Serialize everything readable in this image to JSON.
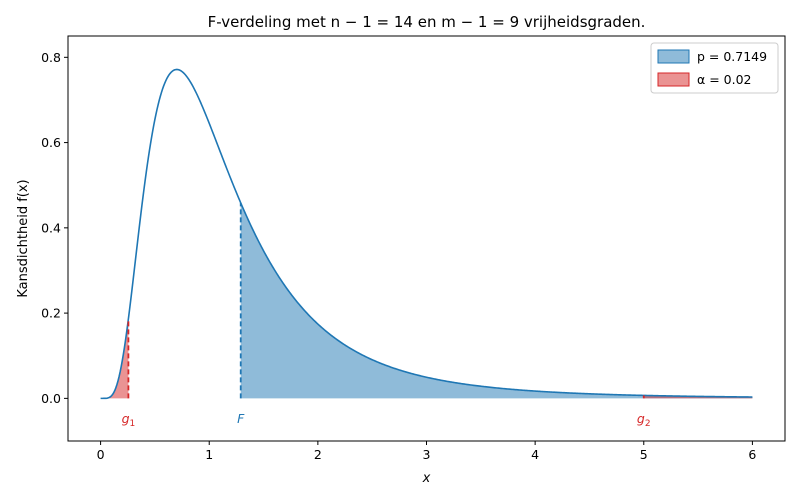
{
  "chart_data": {
    "type": "area",
    "title": "F-verdeling met n − 1 = 14 en m − 1 = 9 vrijheidsgraden.",
    "xlabel": "x",
    "ylabel": "Kansdichtheid f(x)",
    "xlim": [
      -0.3,
      6.3
    ],
    "ylim": [
      -0.1,
      0.85
    ],
    "xticks": [
      "0",
      "1",
      "2",
      "3",
      "4",
      "5",
      "6"
    ],
    "yticks": [
      "0.0",
      "0.2",
      "0.4",
      "0.6",
      "0.8"
    ],
    "grid": false,
    "legend_position": "top-right",
    "distribution": {
      "df1": 14,
      "df2": 9,
      "x_range": [
        0,
        6
      ],
      "peak": {
        "x": 0.7,
        "y": 0.7725
      }
    },
    "series": [
      {
        "name": "p = 0.7149",
        "region": "x ≥ F",
        "from": 1.29,
        "to": 6,
        "color": "#1f77b4"
      },
      {
        "name": "α = 0.02",
        "region": "tails",
        "intervals": [
          [
            0,
            0.256
          ],
          [
            5.0,
            6
          ]
        ],
        "color": "#d62728"
      }
    ],
    "markers": [
      {
        "label": "g",
        "sub": "1",
        "x": 0.256,
        "color": "#d62728"
      },
      {
        "label": "F",
        "sub": "",
        "x": 1.29,
        "color": "#1f77b4"
      },
      {
        "label": "g",
        "sub": "2",
        "x": 5.0,
        "color": "#d62728"
      }
    ],
    "colors": {
      "curve": "#1f77b4",
      "p_fill": "#1f77b4",
      "alpha_fill": "#d62728"
    }
  }
}
